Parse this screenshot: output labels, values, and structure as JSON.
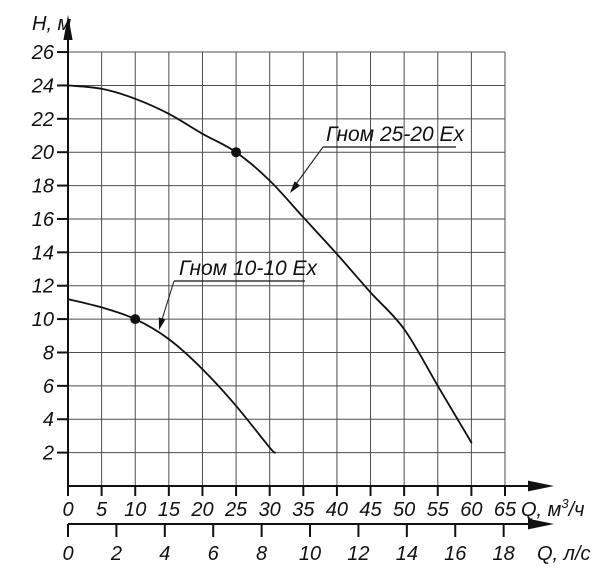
{
  "chart_data": {
    "type": "line",
    "title": "",
    "grid": true,
    "legend_position": "inline-annotations",
    "colors": {
      "curve": "#111111",
      "grid": "#4d4d4d",
      "axis": "#111111",
      "marker": "#111111",
      "text": "#111111",
      "background": "#ffffff"
    },
    "y_axis": {
      "label": "H, м",
      "min": 0,
      "max": 26,
      "tick_step": 2,
      "ticks": [
        2,
        4,
        6,
        8,
        10,
        12,
        14,
        16,
        18,
        20,
        22,
        24,
        26
      ]
    },
    "x_axis_primary": {
      "label": "Q, м³/ч",
      "label_prefix": "Q, м",
      "label_sup": "3",
      "label_suffix": "/ч",
      "min": 0,
      "max": 65,
      "tick_step": 5,
      "ticks": [
        0,
        5,
        10,
        15,
        20,
        25,
        30,
        35,
        40,
        45,
        50,
        55,
        60,
        65
      ]
    },
    "x_axis_secondary": {
      "label": "Q, л/с",
      "min": 0,
      "max": 18,
      "tick_step": 2,
      "ticks": [
        0,
        2,
        4,
        6,
        8,
        10,
        12,
        14,
        16,
        18
      ],
      "m3h_per_unit": 3.6
    },
    "series": [
      {
        "name": "Гном 25-20 Ех",
        "points": [
          [
            0,
            24
          ],
          [
            5,
            23.8
          ],
          [
            10,
            23.2
          ],
          [
            15,
            22.3
          ],
          [
            20,
            21.1
          ],
          [
            25,
            20
          ],
          [
            30,
            18.3
          ],
          [
            35,
            16.1
          ],
          [
            40,
            13.9
          ],
          [
            45,
            11.6
          ],
          [
            50,
            9.4
          ],
          [
            55,
            6.0
          ],
          [
            60,
            2.6
          ]
        ],
        "marker_point": [
          25,
          20
        ]
      },
      {
        "name": "Гном 10-10 Ех",
        "points": [
          [
            0,
            11.2
          ],
          [
            5,
            10.7
          ],
          [
            10,
            10
          ],
          [
            15,
            8.8
          ],
          [
            20,
            7.0
          ],
          [
            25,
            4.8
          ],
          [
            30,
            2.3
          ],
          [
            30.8,
            2.0
          ]
        ],
        "marker_point": [
          10,
          10
        ]
      }
    ]
  }
}
